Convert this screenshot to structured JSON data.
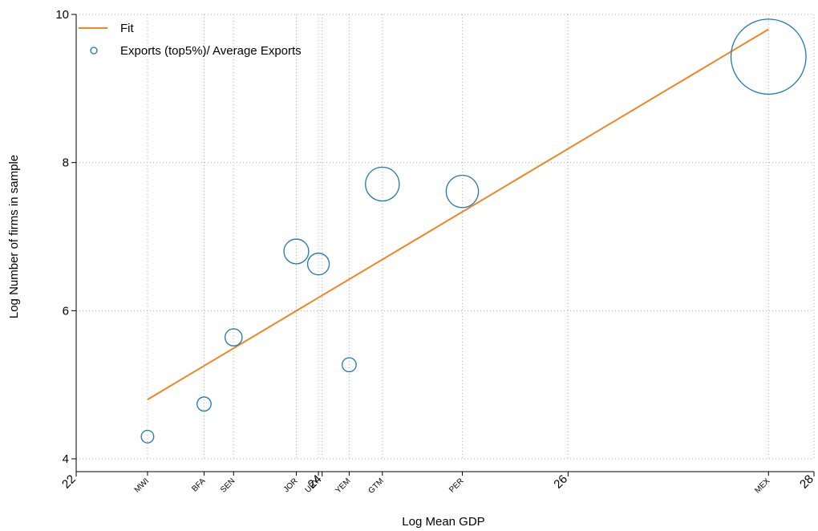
{
  "chart_data": {
    "type": "scatter",
    "xlabel": "Log Mean GDP",
    "ylabel": "Log Number of firms in sample",
    "xlim": [
      22,
      28
    ],
    "ylim": [
      4,
      10
    ],
    "x_ticks": [
      22,
      24,
      26,
      28
    ],
    "y_ticks": [
      4,
      6,
      8,
      10
    ],
    "grid": true,
    "legend_position": "top-left",
    "colors": {
      "fit": "#f28522",
      "markers": "#1f77b4"
    },
    "legend": [
      {
        "label": "Fit",
        "symbol": "line"
      },
      {
        "label": "Exports (top5%)/ Average Exports",
        "symbol": "circle"
      }
    ],
    "series": [
      {
        "name": "Exports (top5%)/ Average Exports",
        "type": "scatter",
        "points": [
          {
            "label": "MWI",
            "x": 22.58,
            "y": 4.3,
            "size": 0.4
          },
          {
            "label": "BFA",
            "x": 23.04,
            "y": 4.74,
            "size": 0.5
          },
          {
            "label": "SEN",
            "x": 23.28,
            "y": 5.64,
            "size": 0.7
          },
          {
            "label": "JOR",
            "x": 23.79,
            "y": 6.8,
            "size": 1.2
          },
          {
            "label": "URY",
            "x": 23.97,
            "y": 6.63,
            "size": 1.0
          },
          {
            "label": "YEM",
            "x": 24.22,
            "y": 5.27,
            "size": 0.5
          },
          {
            "label": "GTM",
            "x": 24.49,
            "y": 7.71,
            "size": 1.8
          },
          {
            "label": "PER",
            "x": 25.14,
            "y": 7.61,
            "size": 1.7
          },
          {
            "label": "MEX",
            "x": 27.63,
            "y": 9.43,
            "size": 4.5
          }
        ]
      },
      {
        "name": "Fit",
        "type": "line",
        "x": [
          22.58,
          27.63
        ],
        "y": [
          4.8,
          9.8
        ]
      }
    ]
  }
}
